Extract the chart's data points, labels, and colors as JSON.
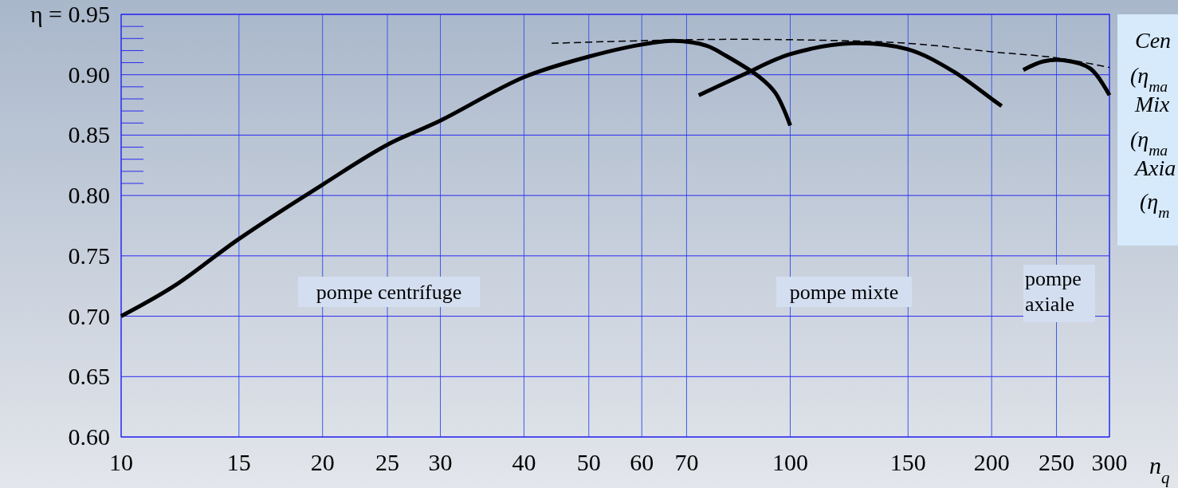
{
  "chart_data": {
    "type": "line",
    "xlabel": "n$_{q}$",
    "log": "x",
    "grid": true,
    "marker": "none",
    "xlim": [
      10,
      300
    ],
    "xticks": [
      10,
      15,
      20,
      25,
      30,
      40,
      50,
      60,
      70,
      100,
      150,
      200,
      250,
      300
    ],
    "ylim": [
      0.6,
      0.95
    ],
    "yticks": [
      {
        "value": 0.6,
        "label": "0.60"
      },
      0.65,
      {
        "value": 0.7,
        "label": "0.70"
      },
      0.75,
      {
        "value": 0.8,
        "label": "0.80"
      },
      0.85,
      {
        "value": 0.9,
        "label": "0.90"
      },
      {
        "value": 0.95,
        "label": "η = 0.95"
      }
    ],
    "series": [
      {
        "color": "#000000",
        "line_style": "solid",
        "x": [
          10,
          12,
          15,
          20,
          25,
          30,
          40,
          50,
          60,
          67,
          75,
          80,
          90,
          95,
          100
        ],
        "values": [
          0.7,
          0.725,
          0.764,
          0.809,
          0.842,
          0.862,
          0.898,
          0.915,
          0.925,
          0.928,
          0.924,
          0.916,
          0.898,
          0.885,
          0.858
        ]
      },
      {
        "color": "#000000",
        "line_style": "solid",
        "x": [
          73,
          85,
          100,
          124,
          150,
          175,
          200,
          207
        ],
        "values": [
          0.883,
          0.9,
          0.917,
          0.926,
          0.921,
          0.903,
          0.88,
          0.874
        ]
      },
      {
        "color": "#000000",
        "line_style": "solid",
        "x": [
          223,
          239,
          256,
          281,
          300
        ],
        "values": [
          0.904,
          0.911,
          0.912,
          0.905,
          0.883
        ]
      },
      {
        "color": "#000000",
        "line_style": "dashed",
        "x": [
          44,
          70,
          100,
          150,
          200,
          250,
          300
        ],
        "values": [
          0.926,
          0.929,
          0.929,
          0.926,
          0.919,
          0.914,
          0.906
        ]
      }
    ],
    "annotations": [
      "pompe centrífuge",
      "pompe mixte",
      "pompe\naxiale",
      "Cen",
      "(η$_{ma}$",
      "Mix",
      "(η$_{ma}$",
      "Axia",
      "(η$_{m}$"
    ]
  }
}
